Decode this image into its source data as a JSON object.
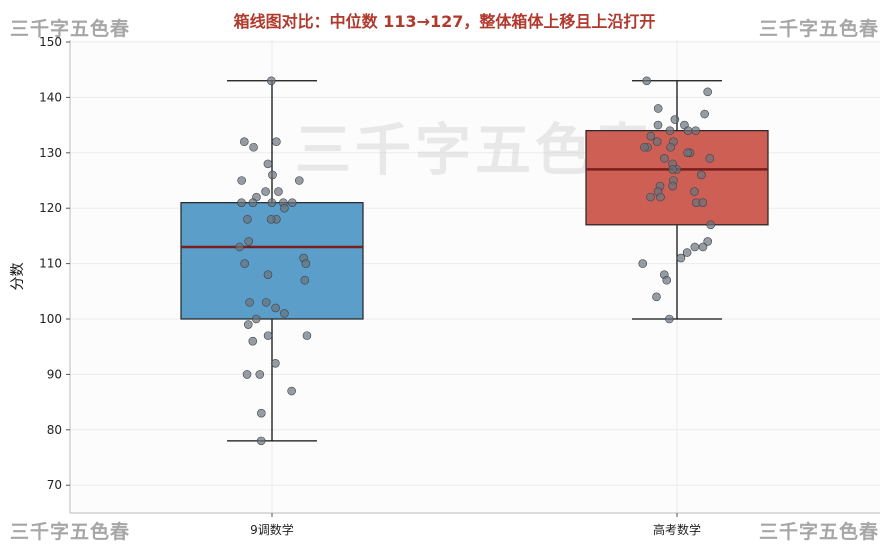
{
  "watermark": "三千字五色春",
  "chart_data": {
    "type": "box",
    "title": "箱线图对比：中位数 113→127，整体箱体上移且上沿打开",
    "xlabel": "",
    "ylabel": "分数",
    "ylim": [
      65,
      150
    ],
    "yticks": [
      70,
      80,
      90,
      100,
      110,
      120,
      130,
      140,
      150
    ],
    "grid": true,
    "legend": "none",
    "categories": [
      "9调数学",
      "高考数学"
    ],
    "boxes": [
      {
        "category": "9调数学",
        "whisker_low": 78,
        "q1": 100,
        "median": 113,
        "q3": 121,
        "whisker_high": 143,
        "color": "#5b9ec9",
        "points": [
          143,
          132,
          132,
          131,
          128,
          126,
          125,
          125,
          123,
          123,
          122,
          121,
          121,
          121,
          121,
          121,
          120,
          118,
          118,
          118,
          114,
          113,
          111,
          110,
          110,
          108,
          107,
          103,
          103,
          102,
          101,
          100,
          99,
          97,
          97,
          96,
          92,
          90,
          90,
          87,
          83,
          78
        ]
      },
      {
        "category": "高考数学",
        "whisker_low": 100,
        "q1": 117,
        "median": 127,
        "q3": 134,
        "whisker_high": 143,
        "color": "#cd5f55",
        "points": [
          143,
          141,
          138,
          137,
          136,
          135,
          135,
          134,
          134,
          134,
          133,
          132,
          132,
          131,
          131,
          131,
          130,
          130,
          129,
          129,
          128,
          127,
          127,
          126,
          125,
          124,
          124,
          123,
          123,
          122,
          122,
          121,
          121,
          117,
          114,
          113,
          113,
          112,
          111,
          110,
          108,
          107,
          104,
          100
        ]
      }
    ]
  }
}
